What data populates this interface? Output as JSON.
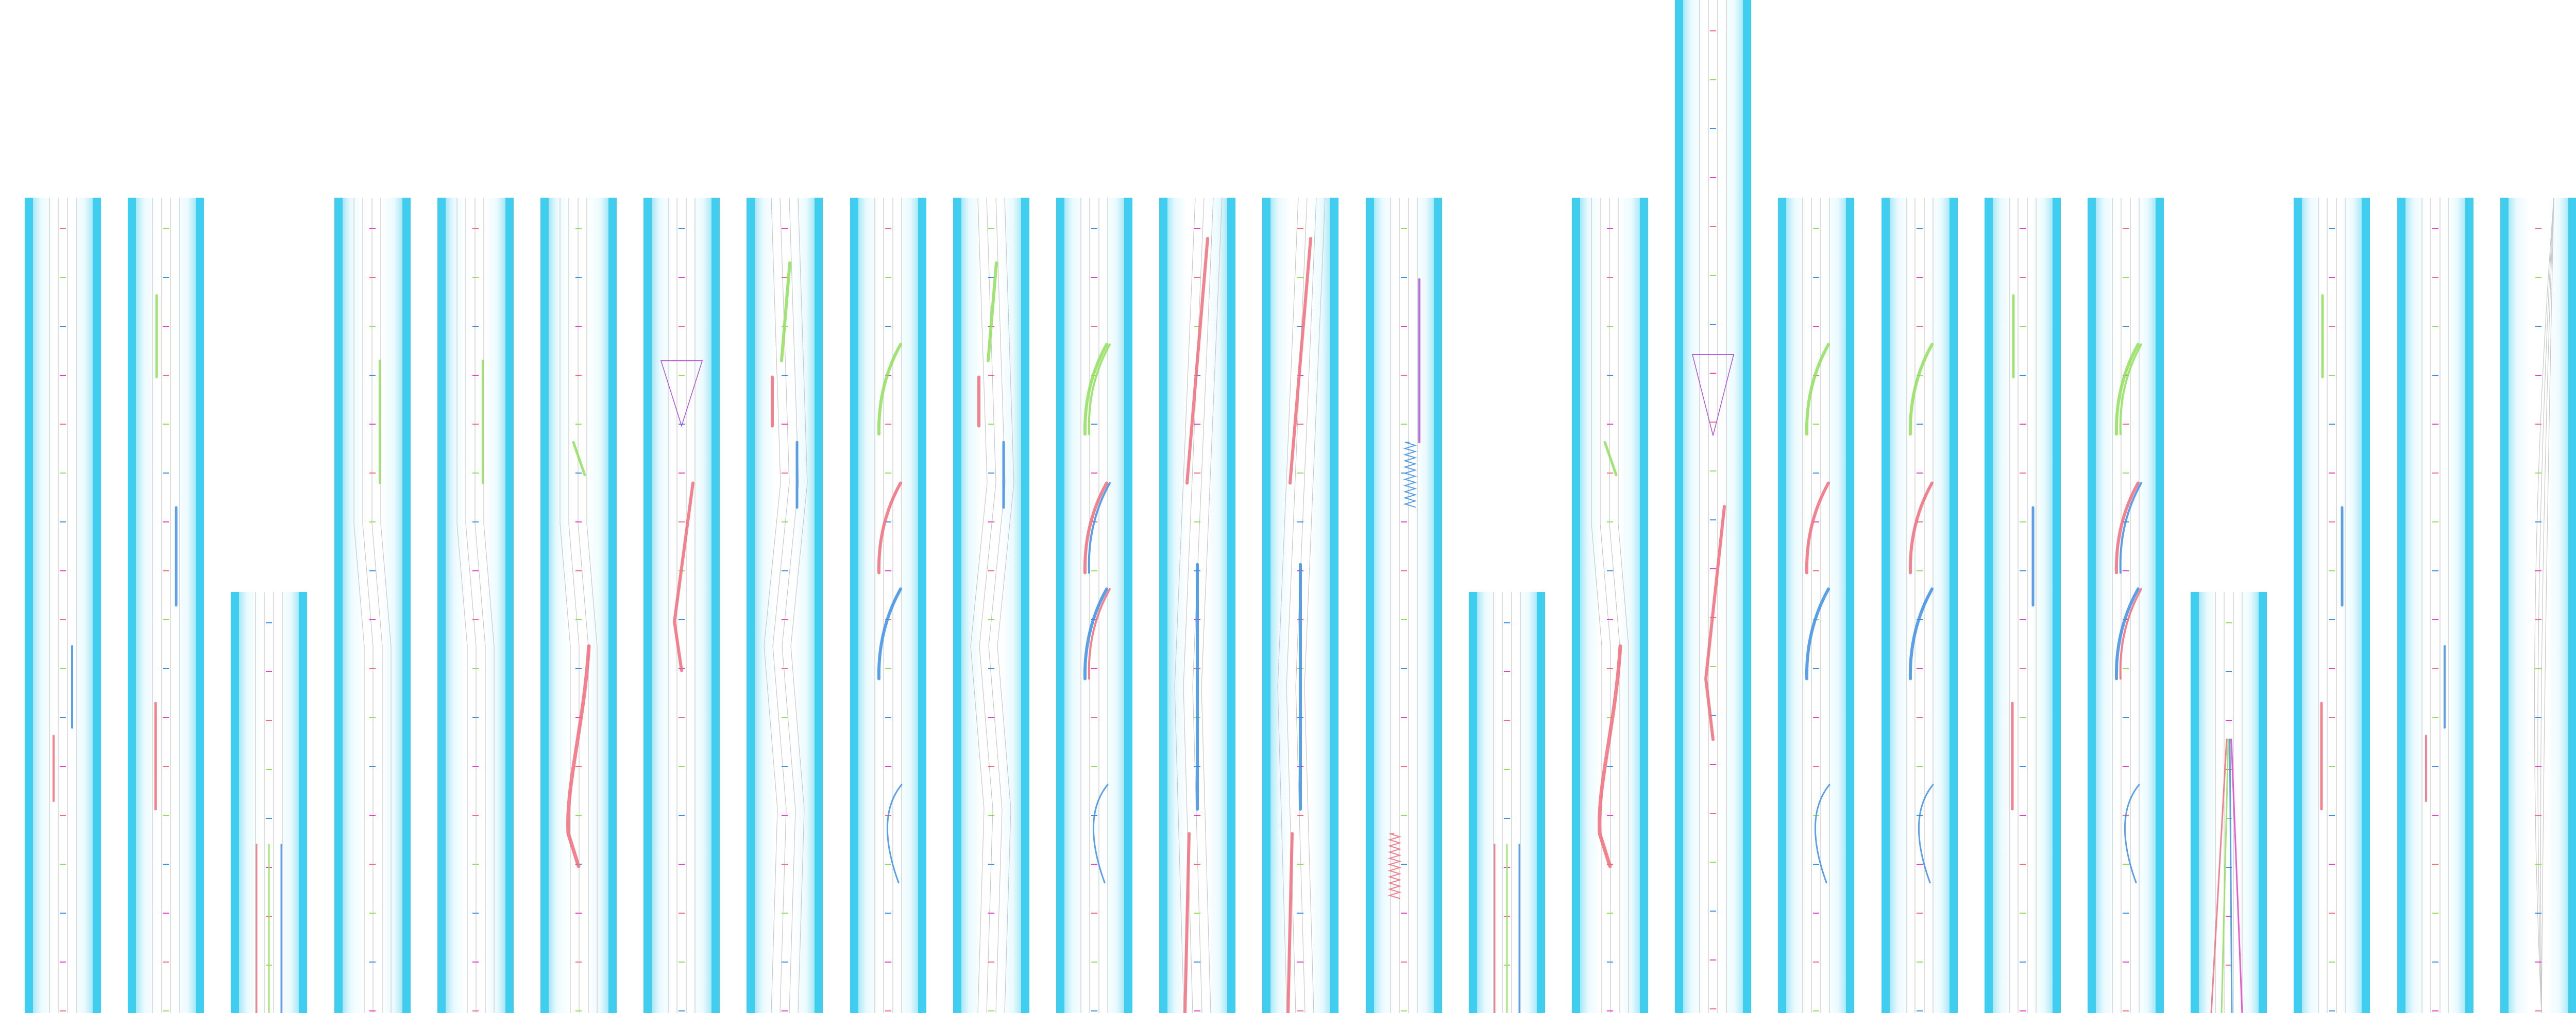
{
  "diagram": {
    "kind": "road lane layout strips",
    "colors": {
      "edge": "#3fcdf0",
      "haze": "#afecfa",
      "lane_line": "#c8c8c8",
      "red": "#f26b7a",
      "green": "#8fe05a",
      "blue": "#3b8fe6",
      "purple": "#b04dde",
      "magenta": "#e83ec8",
      "orange": "#f07c00",
      "yellow": "#e6e04a"
    },
    "strips": [
      {
        "id": 1,
        "variant": "plain"
      },
      {
        "id": 2,
        "variant": "markers"
      },
      {
        "id": 3,
        "variant": "short"
      },
      {
        "id": 4,
        "variant": "shift"
      },
      {
        "id": 5,
        "variant": "shift"
      },
      {
        "id": 6,
        "variant": "curve-red"
      },
      {
        "id": 7,
        "variant": "merge"
      },
      {
        "id": 8,
        "variant": "zigzag"
      },
      {
        "id": 9,
        "variant": "ramps"
      },
      {
        "id": 10,
        "variant": "zigzag"
      },
      {
        "id": 11,
        "variant": "ramps-multi"
      },
      {
        "id": 12,
        "variant": "diagonal"
      },
      {
        "id": 13,
        "variant": "diagonal"
      },
      {
        "id": 14,
        "variant": "spring"
      },
      {
        "id": 15,
        "variant": "short"
      },
      {
        "id": 16,
        "variant": "curve-red"
      },
      {
        "id": 17,
        "variant": "tall-merge"
      },
      {
        "id": 18,
        "variant": "ramps"
      },
      {
        "id": 19,
        "variant": "ramps"
      },
      {
        "id": 20,
        "variant": "markers"
      },
      {
        "id": 21,
        "variant": "ramps-multi"
      },
      {
        "id": 22,
        "variant": "short-fan"
      },
      {
        "id": 23,
        "variant": "markers"
      },
      {
        "id": 24,
        "variant": "plain"
      },
      {
        "id": 25,
        "variant": "lens"
      }
    ]
  }
}
